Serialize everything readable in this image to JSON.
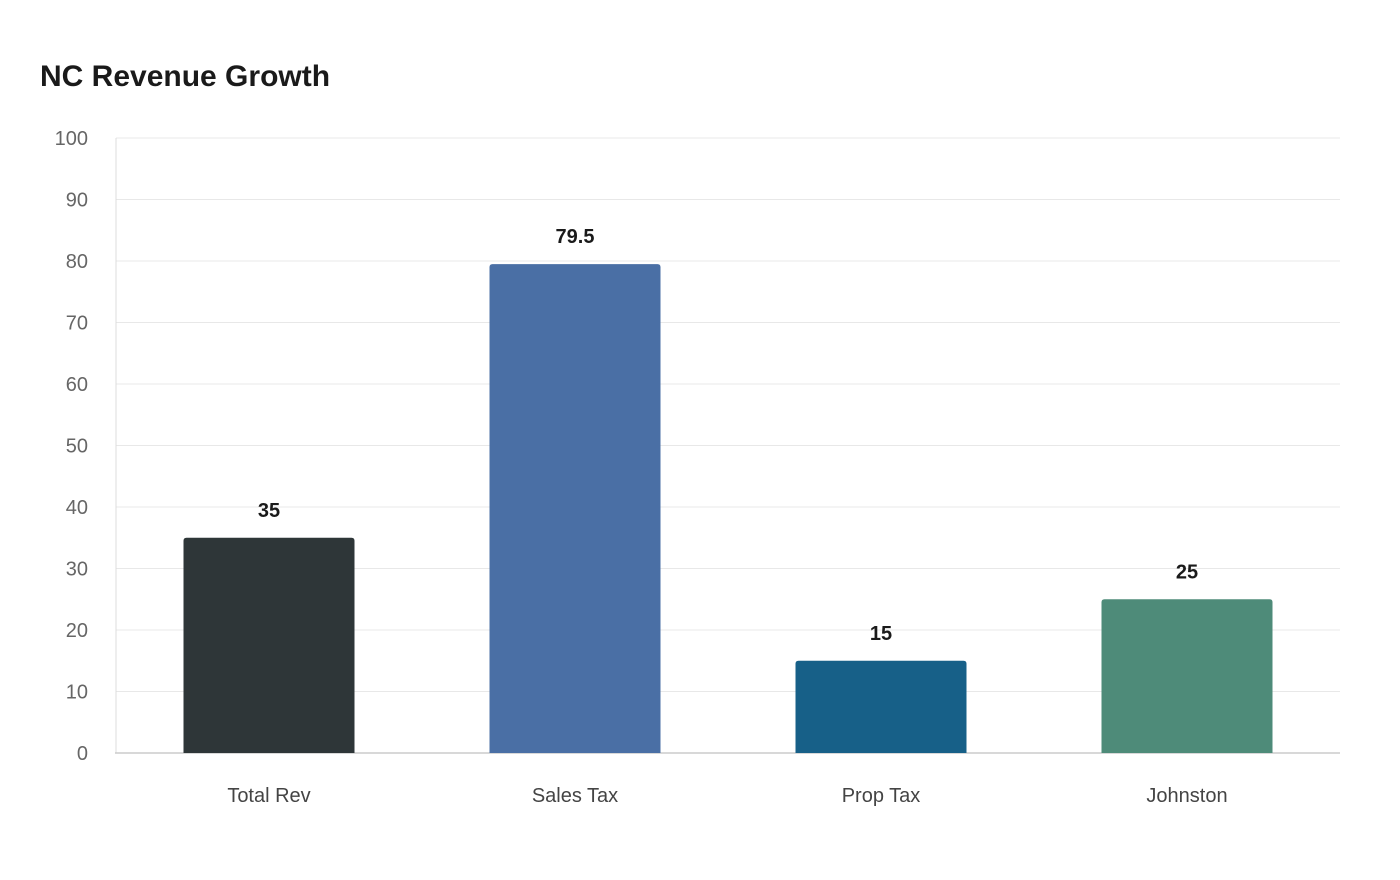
{
  "chart_data": {
    "type": "bar",
    "title": "NC Revenue Growth",
    "xlabel": "",
    "ylabel": "",
    "ylim": [
      0,
      100
    ],
    "yticks": [
      0,
      10,
      20,
      30,
      40,
      50,
      60,
      70,
      80,
      90,
      100
    ],
    "grid": true,
    "categories": [
      "Total Rev",
      "Sales Tax",
      "Prop Tax",
      "Johnston"
    ],
    "values": [
      35,
      79.5,
      15,
      25
    ],
    "data_labels": [
      "35",
      "79.5",
      "15",
      "25"
    ],
    "colors": [
      "#2e3638",
      "#4a6fa5",
      "#176088",
      "#4e8b79"
    ]
  }
}
